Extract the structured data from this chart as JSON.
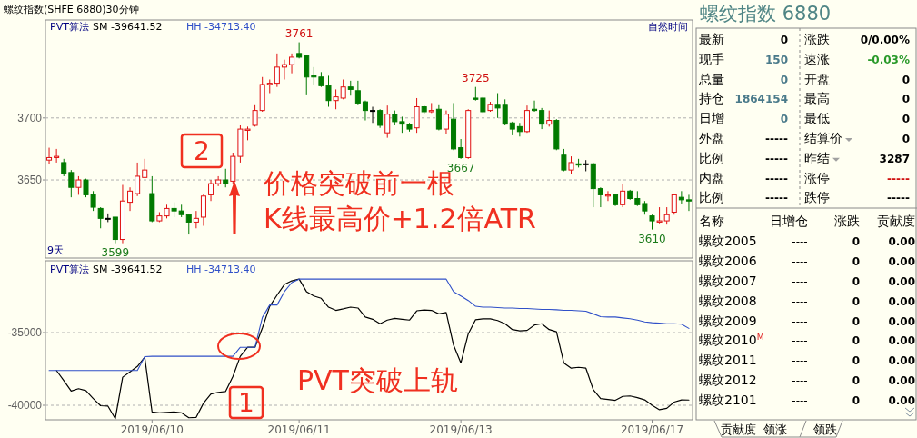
{
  "chart_data": [
    {
      "type": "candlestick",
      "title": "螺纹指数(SHFE 6880)30分钟",
      "categories": [
        null,
        null,
        null,
        null,
        null,
        null,
        null,
        null,
        null,
        null,
        null,
        null,
        null,
        null,
        "2019/06/10",
        null,
        null,
        null,
        null,
        null,
        null,
        null,
        null,
        null,
        null,
        null,
        null,
        null,
        null,
        null,
        null,
        null,
        null,
        null,
        "2019/06/11",
        null,
        null,
        null,
        null,
        null,
        null,
        null,
        null,
        null,
        null,
        null,
        null,
        null,
        null,
        null,
        null,
        null,
        null,
        null,
        null,
        null,
        "2019/06/13",
        null,
        null,
        null,
        null,
        null,
        null,
        null,
        null,
        null,
        null,
        null,
        null,
        null,
        null,
        null,
        null,
        null,
        null,
        null,
        null,
        null,
        null,
        null,
        null,
        null,
        "2019/06/17",
        null,
        null,
        null,
        null,
        null
      ],
      "ohlc": [
        [
          3666,
          3676,
          3663,
          3668
        ],
        [
          3668,
          3675,
          3664,
          3669
        ],
        [
          3664,
          3667,
          3653,
          3655
        ],
        [
          3656,
          3658,
          3636,
          3644
        ],
        [
          3644,
          3653,
          3638,
          3650
        ],
        [
          3650,
          3651,
          3636,
          3638
        ],
        [
          3638,
          3641,
          3625,
          3628
        ],
        [
          3627,
          3628,
          3611,
          3619
        ],
        [
          3619,
          3623,
          3616,
          3619
        ],
        [
          3620,
          3620,
          3599,
          3602
        ],
        [
          3602,
          3646,
          3599,
          3633
        ],
        [
          3632,
          3644,
          3625,
          3641
        ],
        [
          3639,
          3664,
          3637,
          3653
        ],
        [
          3652,
          3667,
          3652,
          3658
        ],
        [
          3639,
          3653,
          3616,
          3617
        ],
        [
          3617,
          3624,
          3616,
          3621
        ],
        [
          3621,
          3630,
          3619,
          3627
        ],
        [
          3627,
          3632,
          3620,
          3625
        ],
        [
          3625,
          3630,
          3620,
          3622
        ],
        [
          3622,
          3622,
          3606,
          3616
        ],
        [
          3616,
          3625,
          3611,
          3619
        ],
        [
          3620,
          3639,
          3613,
          3637
        ],
        [
          3638,
          3650,
          3633,
          3647
        ],
        [
          3647,
          3653,
          3645,
          3650
        ],
        [
          3650,
          3659,
          3644,
          3647
        ],
        [
          3649,
          3672,
          3647,
          3669
        ],
        [
          3669,
          3694,
          3664,
          3691
        ],
        [
          3690,
          3693,
          3682,
          3691
        ],
        [
          3694,
          3711,
          3693,
          3706
        ],
        [
          3706,
          3733,
          3705,
          3727
        ],
        [
          3727,
          3731,
          3720,
          3728
        ],
        [
          3728,
          3752,
          3725,
          3741
        ],
        [
          3741,
          3747,
          3731,
          3743
        ],
        [
          3743,
          3752,
          3736,
          3749
        ],
        [
          3752,
          3761,
          3748,
          3749
        ],
        [
          3750,
          3751,
          3719,
          3733
        ],
        [
          3734,
          3741,
          3727,
          3733
        ],
        [
          3733,
          3737,
          3725,
          3726
        ],
        [
          3726,
          3734,
          3709,
          3714
        ],
        [
          3714,
          3723,
          3707,
          3717
        ],
        [
          3716,
          3731,
          3715,
          3725
        ],
        [
          3725,
          3730,
          3718,
          3723
        ],
        [
          3722,
          3730,
          3711,
          3712
        ],
        [
          3713,
          3714,
          3698,
          3706
        ],
        [
          3706,
          3709,
          3696,
          3706
        ],
        [
          3706,
          3707,
          3692,
          3694
        ],
        [
          3688,
          3710,
          3684,
          3703
        ],
        [
          3703,
          3706,
          3694,
          3697
        ],
        [
          3697,
          3701,
          3688,
          3695
        ],
        [
          3695,
          3696,
          3689,
          3691
        ],
        [
          3692,
          3716,
          3688,
          3709
        ],
        [
          3709,
          3710,
          3703,
          3705
        ],
        [
          3705,
          3712,
          3704,
          3706
        ],
        [
          3707,
          3711,
          3690,
          3691
        ],
        [
          3691,
          3706,
          3687,
          3703
        ],
        [
          3699,
          3712,
          3674,
          3675
        ],
        [
          3676,
          3683,
          3667,
          3668
        ],
        [
          3668,
          3707,
          3667,
          3706
        ],
        [
          3716,
          3725,
          3714,
          3715
        ],
        [
          3716,
          3717,
          3704,
          3705
        ],
        [
          3706,
          3713,
          3705,
          3711
        ],
        [
          3711,
          3720,
          3700,
          3708
        ],
        [
          3711,
          3715,
          3694,
          3695
        ],
        [
          3696,
          3697,
          3686,
          3691
        ],
        [
          3693,
          3696,
          3685,
          3689
        ],
        [
          3689,
          3710,
          3688,
          3706
        ],
        [
          3707,
          3714,
          3705,
          3706
        ],
        [
          3706,
          3708,
          3691,
          3695
        ],
        [
          3695,
          3706,
          3693,
          3698
        ],
        [
          3698,
          3699,
          3674,
          3675
        ],
        [
          3670,
          3675,
          3657,
          3658
        ],
        [
          3658,
          3669,
          3655,
          3664
        ],
        [
          3663,
          3667,
          3660,
          3662
        ],
        [
          3663,
          3666,
          3657,
          3663
        ],
        [
          3663,
          3664,
          3628,
          3643
        ],
        [
          3643,
          3644,
          3628,
          3638
        ],
        [
          3637,
          3641,
          3633,
          3638
        ],
        [
          3638,
          3639,
          3629,
          3630
        ],
        [
          3630,
          3647,
          3628,
          3641
        ],
        [
          3641,
          3642,
          3634,
          3635
        ],
        [
          3635,
          3641,
          3629,
          3630
        ],
        [
          3631,
          3633,
          3622,
          3625
        ],
        [
          3621,
          3622,
          3610,
          3617
        ],
        [
          3616,
          3628,
          3615,
          3617
        ],
        [
          3617,
          3628,
          3614,
          3622
        ],
        [
          3624,
          3639,
          3622,
          3638
        ],
        [
          3636,
          3641,
          3631,
          3634
        ],
        [
          3634,
          3638,
          3625,
          3633
        ]
      ],
      "ylim": [
        3587,
        3779
      ],
      "yticks": [
        3650,
        3700
      ],
      "grid": "y",
      "tick_labels": "y",
      "annotations": [
        "PVT算法",
        "SM -39641.52",
        "HH -34713.40",
        "自然时间",
        "9天",
        "2",
        "价格突破前一根",
        "K线最高价+1.2倍ATR",
        {
          "text": "3761",
          "y": 3761
        },
        {
          "text": "3725",
          "y": 3725
        },
        {
          "text": "3667",
          "y": 3667
        },
        {
          "text": "3599",
          "y": 3599
        },
        {
          "text": "3610",
          "y": 3610
        }
      ]
    },
    {
      "type": "line",
      "categories": [
        null,
        null,
        null,
        null,
        null,
        null,
        null,
        null,
        null,
        null,
        null,
        null,
        null,
        null,
        "2019/06/10",
        null,
        null,
        null,
        null,
        null,
        null,
        null,
        null,
        null,
        null,
        null,
        null,
        null,
        null,
        null,
        null,
        null,
        null,
        null,
        "2019/06/11",
        null,
        null,
        null,
        null,
        null,
        null,
        null,
        null,
        null,
        null,
        null,
        null,
        null,
        null,
        null,
        null,
        null,
        null,
        null,
        null,
        null,
        "2019/06/13",
        null,
        null,
        null,
        null,
        null,
        null,
        null,
        null,
        null,
        null,
        null,
        null,
        null,
        null,
        null,
        null,
        null,
        null,
        null,
        null,
        null,
        null,
        null,
        null,
        null,
        "2019/06/17",
        null,
        null,
        null,
        null,
        null
      ],
      "series": [
        {
          "name": "SM -39641.52",
          "color": "#000000",
          "values": [
            null,
            -37610,
            -38310,
            -39020,
            -38860,
            -38990,
            -39540,
            -40030,
            -40060,
            -40920,
            -38070,
            -37700,
            -37330,
            -36690,
            -40460,
            -40520,
            -40490,
            -40460,
            -40520,
            -40860,
            -40830,
            -39850,
            -39230,
            -39110,
            -39050,
            -38010,
            -36630,
            -36010,
            -36010,
            -34690,
            -33190,
            -32420,
            -31690,
            -31440,
            -31320,
            -32180,
            -32480,
            -32640,
            -33250,
            -33470,
            -33370,
            -33250,
            -33310,
            -33930,
            -34080,
            -34390,
            -34140,
            -34020,
            -34080,
            -34140,
            -33500,
            -33440,
            -33470,
            -33710,
            -33620,
            -35860,
            -37090,
            -35090,
            -34110,
            -34050,
            -34050,
            -34170,
            -34390,
            -34790,
            -34880,
            -34850,
            -34480,
            -34390,
            -34790,
            -34940,
            -37090,
            -37450,
            -37390,
            -37450,
            -38930,
            -39540,
            -39600,
            -39660,
            -39390,
            -39360,
            -39480,
            -39630,
            -40000,
            -40310,
            -40210,
            -39780,
            -39630,
            -39640
          ]
        },
        {
          "name": "HH -34713.40",
          "color": "#3050c8",
          "values": [
            -37610,
            -37610,
            -37610,
            -37610,
            -37610,
            -37610,
            -37610,
            -37610,
            -37610,
            -37610,
            -37610,
            -37610,
            -37610,
            -36660,
            -36630,
            -36630,
            -36630,
            -36630,
            -36630,
            -36630,
            -36630,
            -36630,
            -36630,
            -36630,
            -36630,
            -36630,
            -36010,
            -36010,
            -36010,
            -33960,
            -33100,
            -33100,
            -32180,
            -31560,
            -31320,
            -31320,
            -31320,
            -31320,
            -31320,
            -31320,
            -31320,
            -31320,
            -31320,
            -31320,
            -31320,
            -31320,
            -31320,
            -31320,
            -31320,
            -31320,
            -31320,
            -31320,
            -31320,
            -31320,
            -31320,
            -32180,
            -32480,
            -32790,
            -33190,
            -33250,
            -33250,
            -33280,
            -33310,
            -33310,
            -33340,
            -33340,
            -33370,
            -33400,
            -33400,
            -33430,
            -33470,
            -33470,
            -33500,
            -33530,
            -33710,
            -33900,
            -33930,
            -33930,
            -33990,
            -34050,
            -34140,
            -34260,
            -34320,
            -34350,
            -34390,
            -34390,
            -34420,
            -34710
          ]
        }
      ],
      "ylim": [
        -41000,
        -30060
      ],
      "yticks": [
        -35000,
        -40000
      ],
      "grid": "y",
      "legend": "top left",
      "legend_title": "PVT算法",
      "annotations": [
        "PVT突破上轨",
        "1"
      ]
    },
    {
      "type": "other",
      "title": "螺纹指数 6880",
      "annotations": [
        "最新",
        "0",
        "涨跌",
        "0/0.00%",
        "现手",
        "150",
        "速涨",
        "-0.03%",
        "总量",
        "0",
        "开盘",
        "0",
        "持仓",
        "1864154",
        "最高",
        "0",
        "日增",
        "0",
        "最低",
        "0",
        "外盘",
        "-----",
        "结算价",
        "0",
        "比例",
        "-----",
        "昨结",
        "3287",
        "内盘",
        "-----",
        "涨停",
        "-----",
        "比例",
        "-----",
        "跌停",
        "-----",
        "名称",
        "日增仓",
        "涨跌",
        "贡献度",
        "螺纹2005",
        "----",
        "0",
        "0.00",
        "螺纹2006",
        "----",
        "0",
        "0.00",
        "螺纹2007",
        "----",
        "0",
        "0.00",
        "螺纹2008",
        "----",
        "0",
        "0.00",
        "螺纹2009",
        "----",
        "0",
        "0.00",
        "螺纹2010$^{M}$",
        "----",
        "0",
        "0.00",
        "螺纹2011",
        "----",
        "0",
        "0.00",
        "螺纹2012",
        "----",
        "0",
        "0.00",
        "螺纹2101",
        "----",
        "0",
        "0.00",
        "贡献度",
        "领涨",
        "领跌"
      ]
    }
  ]
}
